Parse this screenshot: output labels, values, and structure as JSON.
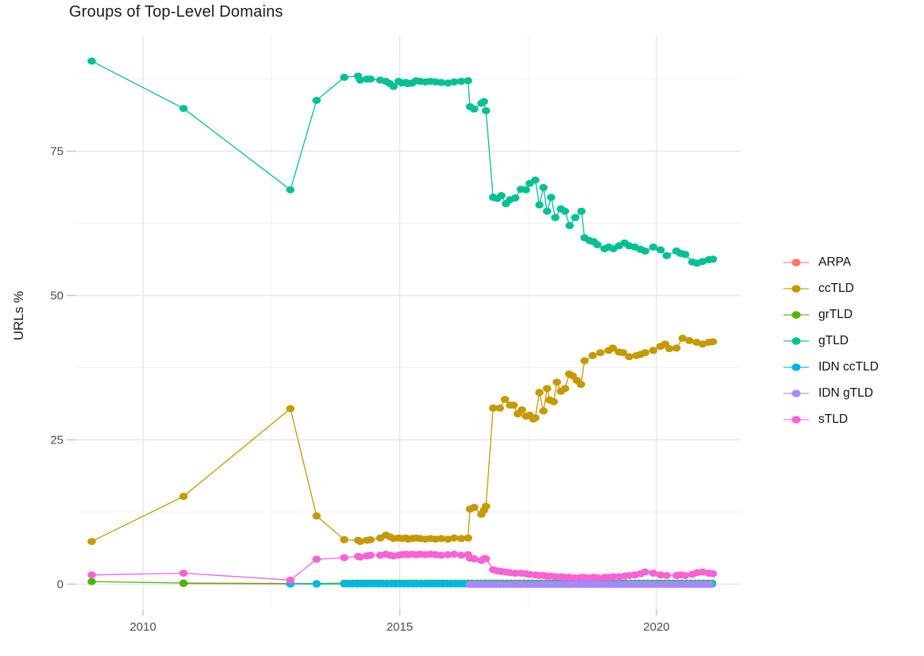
{
  "chart_data": {
    "type": "line",
    "title": "Groups of Top-Level Domains",
    "ylabel": "URLs %",
    "xlabel": "",
    "grid": true,
    "legend_position": "right",
    "x_ticks": [
      2010,
      2015,
      2020
    ],
    "x_minor": [
      2012.5,
      2017.5
    ],
    "y_ticks": [
      0,
      25,
      50,
      75
    ],
    "y_minor": [
      12.5,
      37.5,
      62.5,
      87.5
    ],
    "xlim": [
      2008.73,
      2021.64
    ],
    "ylim": [
      -4.2,
      95.0
    ],
    "series": [
      {
        "name": "ARPA",
        "color": "#F8766D",
        "points": [
          [
            2010.79,
            0.1
          ],
          [
            2012.87,
            0.03
          ]
        ]
      },
      {
        "name": "ccTLD",
        "color": "#C49A00",
        "points": [
          [
            2009.0,
            7.4
          ],
          [
            2010.79,
            15.2
          ],
          [
            2012.87,
            30.4
          ],
          [
            2013.38,
            11.8
          ],
          [
            2013.92,
            7.7
          ],
          [
            2014.19,
            7.6
          ],
          [
            2014.23,
            7.4
          ],
          [
            2014.36,
            7.6
          ],
          [
            2014.43,
            7.7
          ],
          [
            2014.62,
            8.0
          ],
          [
            2014.73,
            8.5
          ],
          [
            2014.81,
            8.2
          ],
          [
            2014.88,
            7.9
          ],
          [
            2014.98,
            8.0
          ],
          [
            2015.04,
            7.9
          ],
          [
            2015.12,
            8.0
          ],
          [
            2015.16,
            7.8
          ],
          [
            2015.24,
            7.9
          ],
          [
            2015.32,
            8.0
          ],
          [
            2015.4,
            7.9
          ],
          [
            2015.5,
            7.8
          ],
          [
            2015.6,
            7.9
          ],
          [
            2015.7,
            7.8
          ],
          [
            2015.81,
            7.9
          ],
          [
            2015.94,
            7.8
          ],
          [
            2016.06,
            8.0
          ],
          [
            2016.2,
            7.9
          ],
          [
            2016.33,
            8.0
          ],
          [
            2016.37,
            13.0
          ],
          [
            2016.45,
            13.3
          ],
          [
            2016.59,
            12.1
          ],
          [
            2016.64,
            12.8
          ],
          [
            2016.68,
            13.5
          ],
          [
            2016.82,
            30.5
          ],
          [
            2016.95,
            30.5
          ],
          [
            2017.05,
            32.0
          ],
          [
            2017.15,
            31.0
          ],
          [
            2017.22,
            31.0
          ],
          [
            2017.3,
            29.5
          ],
          [
            2017.38,
            30.2
          ],
          [
            2017.46,
            29.1
          ],
          [
            2017.53,
            29.3
          ],
          [
            2017.6,
            28.6
          ],
          [
            2017.64,
            28.8
          ],
          [
            2017.72,
            33.2
          ],
          [
            2017.8,
            30.0
          ],
          [
            2017.87,
            33.9
          ],
          [
            2017.92,
            31.9
          ],
          [
            2018.0,
            31.6
          ],
          [
            2018.06,
            35.0
          ],
          [
            2018.14,
            33.4
          ],
          [
            2018.22,
            33.9
          ],
          [
            2018.3,
            36.4
          ],
          [
            2018.37,
            36.1
          ],
          [
            2018.45,
            35.3
          ],
          [
            2018.53,
            34.6
          ],
          [
            2018.6,
            38.7
          ],
          [
            2018.76,
            39.6
          ],
          [
            2018.91,
            40.1
          ],
          [
            2019.07,
            40.5
          ],
          [
            2019.15,
            40.9
          ],
          [
            2019.27,
            40.2
          ],
          [
            2019.35,
            40.1
          ],
          [
            2019.47,
            39.4
          ],
          [
            2019.61,
            39.6
          ],
          [
            2019.69,
            39.8
          ],
          [
            2019.78,
            40.1
          ],
          [
            2019.94,
            40.5
          ],
          [
            2020.08,
            41.2
          ],
          [
            2020.17,
            41.6
          ],
          [
            2020.25,
            40.8
          ],
          [
            2020.39,
            40.9
          ],
          [
            2020.51,
            42.6
          ],
          [
            2020.64,
            42.2
          ],
          [
            2020.78,
            41.9
          ],
          [
            2020.9,
            41.6
          ],
          [
            2021.02,
            41.9
          ],
          [
            2021.1,
            42.0
          ]
        ]
      },
      {
        "name": "grTLD",
        "color": "#53B400",
        "points": [
          [
            2009.0,
            0.45
          ],
          [
            2010.79,
            0.2
          ],
          [
            2012.87,
            0.12
          ],
          [
            2013.38,
            0.1
          ]
        ],
        "uniform": {
          "from": 2013.92,
          "to": 2021.1,
          "step": 0.0833,
          "value": 0.18
        }
      },
      {
        "name": "gTLD",
        "color": "#00C094",
        "points": [
          [
            2009.0,
            90.6
          ],
          [
            2010.79,
            82.4
          ],
          [
            2012.87,
            68.3
          ],
          [
            2013.38,
            83.8
          ],
          [
            2013.92,
            87.8
          ],
          [
            2014.19,
            88.0
          ],
          [
            2014.23,
            87.3
          ],
          [
            2014.36,
            87.5
          ],
          [
            2014.43,
            87.5
          ],
          [
            2014.62,
            87.3
          ],
          [
            2014.73,
            87.1
          ],
          [
            2014.81,
            86.7
          ],
          [
            2014.88,
            86.2
          ],
          [
            2014.98,
            87.1
          ],
          [
            2015.04,
            86.8
          ],
          [
            2015.12,
            86.9
          ],
          [
            2015.16,
            86.7
          ],
          [
            2015.24,
            86.8
          ],
          [
            2015.32,
            87.2
          ],
          [
            2015.4,
            87.1
          ],
          [
            2015.5,
            87.0
          ],
          [
            2015.6,
            87.1
          ],
          [
            2015.7,
            87.0
          ],
          [
            2015.81,
            86.9
          ],
          [
            2015.94,
            86.8
          ],
          [
            2016.06,
            87.0
          ],
          [
            2016.2,
            87.1
          ],
          [
            2016.33,
            87.2
          ],
          [
            2016.37,
            82.7
          ],
          [
            2016.45,
            82.3
          ],
          [
            2016.59,
            83.3
          ],
          [
            2016.64,
            83.6
          ],
          [
            2016.68,
            82.0
          ],
          [
            2016.82,
            67.0
          ],
          [
            2016.9,
            66.8
          ],
          [
            2016.98,
            67.3
          ],
          [
            2017.07,
            65.9
          ],
          [
            2017.15,
            66.6
          ],
          [
            2017.25,
            66.9
          ],
          [
            2017.36,
            68.4
          ],
          [
            2017.46,
            68.3
          ],
          [
            2017.53,
            69.4
          ],
          [
            2017.64,
            70.0
          ],
          [
            2017.72,
            65.7
          ],
          [
            2017.8,
            68.7
          ],
          [
            2017.87,
            64.6
          ],
          [
            2017.95,
            67.0
          ],
          [
            2018.03,
            63.5
          ],
          [
            2018.14,
            65.0
          ],
          [
            2018.22,
            64.6
          ],
          [
            2018.31,
            62.1
          ],
          [
            2018.42,
            63.5
          ],
          [
            2018.54,
            64.6
          ],
          [
            2018.6,
            60.0
          ],
          [
            2018.7,
            59.5
          ],
          [
            2018.78,
            59.3
          ],
          [
            2018.85,
            58.8
          ],
          [
            2018.99,
            58.1
          ],
          [
            2019.07,
            58.4
          ],
          [
            2019.16,
            58.1
          ],
          [
            2019.27,
            58.6
          ],
          [
            2019.38,
            59.1
          ],
          [
            2019.47,
            58.6
          ],
          [
            2019.58,
            58.4
          ],
          [
            2019.69,
            58.0
          ],
          [
            2019.78,
            57.7
          ],
          [
            2019.94,
            58.4
          ],
          [
            2020.08,
            57.9
          ],
          [
            2020.2,
            56.9
          ],
          [
            2020.39,
            57.7
          ],
          [
            2020.47,
            57.3
          ],
          [
            2020.56,
            57.1
          ],
          [
            2020.7,
            55.8
          ],
          [
            2020.79,
            55.6
          ],
          [
            2020.9,
            55.9
          ],
          [
            2021.02,
            56.2
          ],
          [
            2021.1,
            56.3
          ]
        ]
      },
      {
        "name": "IDN ccTLD",
        "color": "#00B6EB",
        "points": [
          [
            2012.87,
            0.05
          ],
          [
            2013.38,
            0.02
          ]
        ],
        "uniform": {
          "from": 2013.92,
          "to": 2021.1,
          "step": 0.0833,
          "value": 0.04
        }
      },
      {
        "name": "IDN gTLD",
        "color": "#A58AFF",
        "uniform": {
          "from": 2016.37,
          "to": 2021.1,
          "step": 0.0833,
          "value": -0.05
        }
      },
      {
        "name": "sTLD",
        "color": "#FB61D7",
        "points": [
          [
            2009.0,
            1.6
          ],
          [
            2010.79,
            1.9
          ],
          [
            2012.87,
            0.7
          ],
          [
            2013.38,
            4.3
          ],
          [
            2013.92,
            4.6
          ],
          [
            2014.19,
            4.8
          ],
          [
            2014.23,
            4.7
          ],
          [
            2014.36,
            4.9
          ],
          [
            2014.43,
            5.0
          ],
          [
            2014.62,
            5.0
          ],
          [
            2014.73,
            5.2
          ],
          [
            2014.81,
            5.0
          ],
          [
            2014.88,
            4.9
          ],
          [
            2014.98,
            5.0
          ],
          [
            2015.04,
            5.1
          ],
          [
            2015.12,
            5.2
          ],
          [
            2015.16,
            5.1
          ],
          [
            2015.24,
            5.2
          ],
          [
            2015.32,
            5.1
          ],
          [
            2015.4,
            5.2
          ],
          [
            2015.5,
            5.1
          ],
          [
            2015.6,
            5.2
          ],
          [
            2015.7,
            5.1
          ],
          [
            2015.81,
            5.0
          ],
          [
            2015.94,
            5.1
          ],
          [
            2016.06,
            5.2
          ],
          [
            2016.2,
            5.0
          ],
          [
            2016.33,
            5.1
          ],
          [
            2016.37,
            4.5
          ],
          [
            2016.45,
            4.4
          ],
          [
            2016.59,
            4.1
          ],
          [
            2016.64,
            4.4
          ],
          [
            2016.68,
            4.4
          ],
          [
            2016.82,
            2.5
          ],
          [
            2016.9,
            2.3
          ],
          [
            2016.98,
            2.2
          ],
          [
            2017.07,
            2.1
          ],
          [
            2017.15,
            2.0
          ],
          [
            2017.25,
            1.9
          ],
          [
            2017.36,
            1.9
          ],
          [
            2017.46,
            1.8
          ],
          [
            2017.53,
            1.7
          ],
          [
            2017.64,
            1.6
          ],
          [
            2017.72,
            1.5
          ],
          [
            2017.8,
            1.5
          ],
          [
            2017.87,
            1.4
          ],
          [
            2017.95,
            1.4
          ],
          [
            2018.03,
            1.3
          ],
          [
            2018.14,
            1.3
          ],
          [
            2018.22,
            1.2
          ],
          [
            2018.31,
            1.2
          ],
          [
            2018.42,
            1.1
          ],
          [
            2018.54,
            1.2
          ],
          [
            2018.6,
            1.2
          ],
          [
            2018.7,
            1.1
          ],
          [
            2018.78,
            1.2
          ],
          [
            2018.85,
            1.1
          ],
          [
            2018.99,
            1.2
          ],
          [
            2019.07,
            1.2
          ],
          [
            2019.16,
            1.3
          ],
          [
            2019.27,
            1.3
          ],
          [
            2019.38,
            1.4
          ],
          [
            2019.47,
            1.5
          ],
          [
            2019.58,
            1.6
          ],
          [
            2019.69,
            1.8
          ],
          [
            2019.78,
            2.1
          ],
          [
            2019.94,
            1.9
          ],
          [
            2020.08,
            1.6
          ],
          [
            2020.2,
            1.5
          ],
          [
            2020.39,
            1.5
          ],
          [
            2020.47,
            1.6
          ],
          [
            2020.56,
            1.5
          ],
          [
            2020.7,
            1.7
          ],
          [
            2020.79,
            2.0
          ],
          [
            2020.9,
            2.1
          ],
          [
            2021.02,
            1.9
          ],
          [
            2021.1,
            1.8
          ]
        ]
      }
    ],
    "style": {
      "grid_major_color": "#e6e6e6",
      "grid_minor_color": "#f2f2f2",
      "tick_mark_color": "#c9c9c9",
      "tick_label_color": "#4d4d4d"
    }
  }
}
